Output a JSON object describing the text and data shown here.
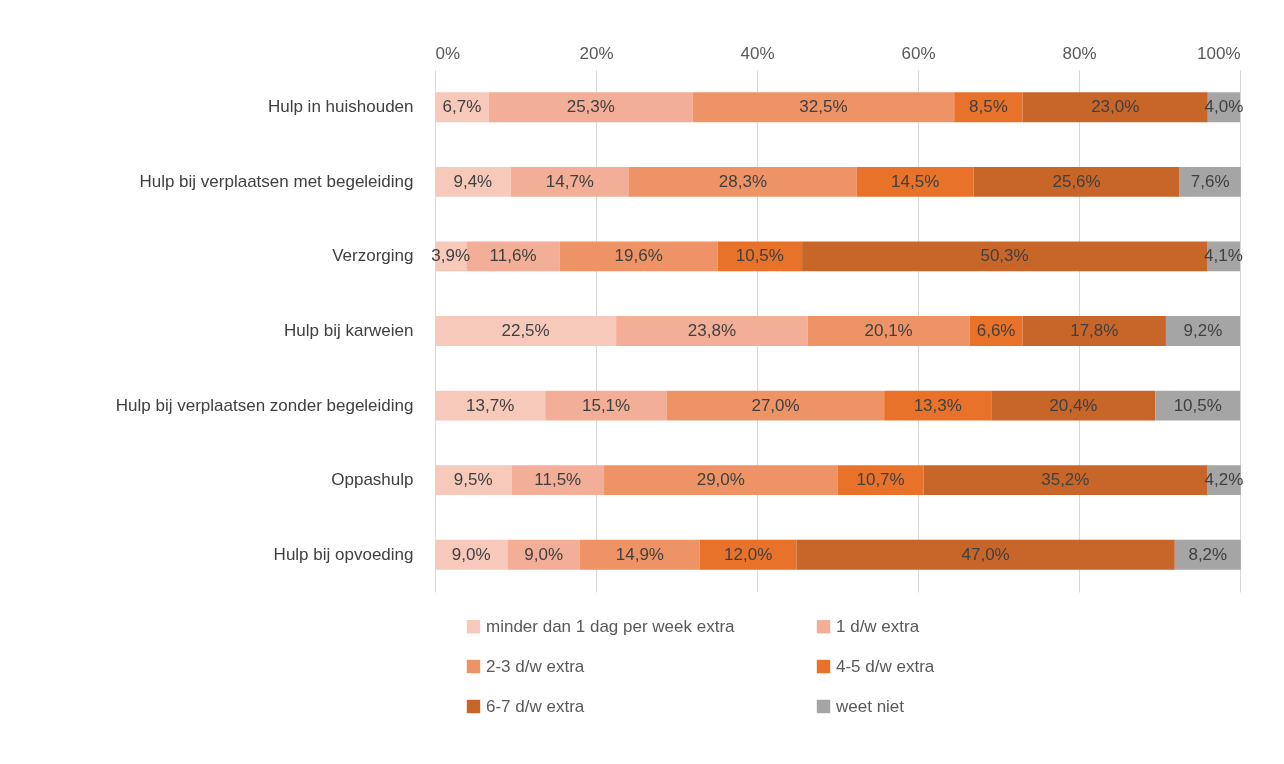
{
  "chart_data": {
    "type": "bar",
    "orientation": "horizontal",
    "stacked": true,
    "categories": [
      "Hulp in huishouden",
      "Hulp bij verplaatsen met begeleiding",
      "Verzorging",
      "Hulp bij karweien",
      "Hulp bij verplaatsen zonder begeleiding",
      "Oppashulp",
      "Hulp bij opvoeding"
    ],
    "series": [
      {
        "name": "minder dan 1 dag per week extra",
        "color": "#f7c9bb",
        "values": [
          6.7,
          9.4,
          3.9,
          22.5,
          13.7,
          9.5,
          9.0
        ],
        "value_labels": [
          "6,7%",
          "9,4%",
          "3,9%",
          "22,5%",
          "13,7%",
          "9,5%",
          "9,0%"
        ]
      },
      {
        "name": "1 d/w extra",
        "color": "#f2ae97",
        "values": [
          25.3,
          14.7,
          11.6,
          23.8,
          15.1,
          11.5,
          9.0
        ],
        "value_labels": [
          "25,3%",
          "14,7%",
          "11,6%",
          "23,8%",
          "15,1%",
          "11,5%",
          "9,0%"
        ]
      },
      {
        "name": "2-3 d/w extra",
        "color": "#ee9366",
        "values": [
          32.5,
          28.3,
          19.6,
          20.1,
          27.0,
          29.0,
          14.9
        ],
        "value_labels": [
          "32,5%",
          "28,3%",
          "19,6%",
          "20,1%",
          "27,0%",
          "29,0%",
          "14,9%"
        ]
      },
      {
        "name": "4-5 d/w extra",
        "color": "#e8722a",
        "values": [
          8.5,
          14.5,
          10.5,
          6.6,
          13.3,
          10.7,
          12.0
        ],
        "value_labels": [
          "8,5%",
          "14,5%",
          "10,5%",
          "6,6%",
          "13,3%",
          "10,7%",
          "12,0%"
        ]
      },
      {
        "name": "6-7 d/w extra",
        "color": "#c8662a",
        "values": [
          23.0,
          25.6,
          50.3,
          17.8,
          20.4,
          35.2,
          47.0
        ],
        "value_labels": [
          "23,0%",
          "25,6%",
          "50,3%",
          "17,8%",
          "20,4%",
          "35,2%",
          "47,0%"
        ]
      },
      {
        "name": "weet niet",
        "color": "#a5a5a5",
        "values": [
          4.0,
          7.6,
          4.1,
          9.2,
          10.5,
          4.2,
          8.2
        ],
        "value_labels": [
          "4,0%",
          "7,6%",
          "4,1%",
          "9,2%",
          "10,5%",
          "4,2%",
          "8,2%"
        ]
      }
    ],
    "xlim": [
      0,
      100
    ],
    "xticks": [
      {
        "value": 0,
        "label": "0%"
      },
      {
        "value": 20,
        "label": "20%"
      },
      {
        "value": 40,
        "label": "40%"
      },
      {
        "value": 60,
        "label": "60%"
      },
      {
        "value": 80,
        "label": "80%"
      },
      {
        "value": 100,
        "label": "100%"
      }
    ],
    "grid": "x",
    "legend": "bottom"
  }
}
